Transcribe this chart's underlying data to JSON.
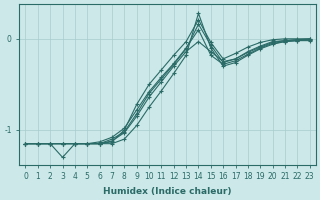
{
  "xlabel": "Humidex (Indice chaleur)",
  "xlim_min": -0.5,
  "xlim_max": 23.5,
  "ylim_min": -1.38,
  "ylim_max": 0.38,
  "yticks": [
    0,
    -1
  ],
  "xtick_vals": [
    0,
    1,
    2,
    3,
    4,
    5,
    6,
    7,
    8,
    9,
    10,
    11,
    12,
    13,
    14,
    15,
    16,
    17,
    18,
    19,
    20,
    21,
    22,
    23
  ],
  "bg_color": "#cce8e8",
  "line_color": "#2a6b68",
  "grid_color": "#a8cccc",
  "lines": [
    [
      -1.15,
      -1.15,
      -1.15,
      -1.15,
      -1.15,
      -1.15,
      -1.15,
      -1.15,
      -1.1,
      -0.95,
      -0.75,
      -0.57,
      -0.38,
      -0.18,
      0.28,
      -0.1,
      -0.3,
      -0.26,
      -0.18,
      -0.11,
      -0.06,
      -0.03,
      -0.02,
      -0.02
    ],
    [
      -1.15,
      -1.15,
      -1.15,
      -1.3,
      -1.15,
      -1.15,
      -1.15,
      -1.12,
      -1.03,
      -0.85,
      -0.64,
      -0.47,
      -0.3,
      -0.14,
      -0.03,
      -0.14,
      -0.25,
      -0.22,
      -0.15,
      -0.09,
      -0.04,
      -0.02,
      -0.01,
      -0.01
    ],
    [
      -1.15,
      -1.15,
      -1.15,
      -1.15,
      -1.15,
      -1.15,
      -1.13,
      -1.08,
      -0.98,
      -0.78,
      -0.58,
      -0.42,
      -0.27,
      -0.1,
      0.1,
      -0.18,
      -0.28,
      -0.24,
      -0.17,
      -0.1,
      -0.05,
      -0.03,
      -0.02,
      -0.01
    ],
    [
      -1.15,
      -1.15,
      -1.15,
      -1.15,
      -1.15,
      -1.15,
      -1.15,
      -1.1,
      -1.02,
      -0.82,
      -0.6,
      -0.44,
      -0.28,
      -0.11,
      0.16,
      -0.07,
      -0.26,
      -0.22,
      -0.14,
      -0.08,
      -0.03,
      -0.02,
      -0.01,
      0.0
    ],
    [
      -1.15,
      -1.15,
      -1.15,
      -1.15,
      -1.15,
      -1.15,
      -1.15,
      -1.13,
      -1.0,
      -0.72,
      -0.5,
      -0.34,
      -0.18,
      -0.03,
      0.21,
      -0.04,
      -0.22,
      -0.16,
      -0.09,
      -0.04,
      -0.01,
      0.0,
      0.0,
      0.0
    ]
  ]
}
